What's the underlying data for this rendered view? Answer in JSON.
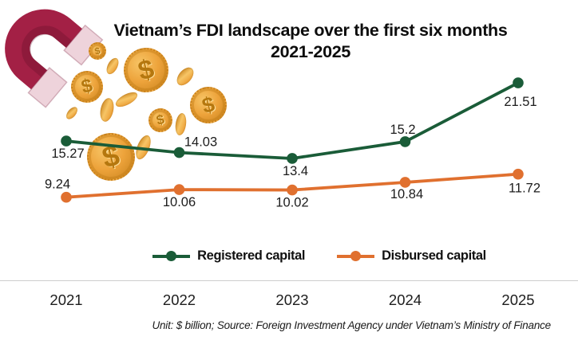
{
  "chart_data": {
    "type": "line",
    "title": "Vietnam’s FDI landscape over the first six months 2021-2025",
    "title_line1": "Vietnam’s FDI landscape over the first six months",
    "title_line2": "2021-2025",
    "categories": [
      "2021",
      "2022",
      "2023",
      "2024",
      "2025"
    ],
    "series": [
      {
        "name": "Registered capital",
        "color": "#1a5c38",
        "values": [
          15.27,
          14.03,
          13.4,
          15.2,
          21.51
        ],
        "label_offsets": [
          [
            2,
            21
          ],
          [
            27,
            -8
          ],
          [
            4,
            21
          ],
          [
            -3,
            -10
          ],
          [
            3,
            29
          ]
        ]
      },
      {
        "name": "Disbursed capital",
        "color": "#e0702f",
        "values": [
          9.24,
          10.06,
          10.02,
          10.84,
          11.72
        ],
        "label_offsets": [
          [
            -11,
            -11
          ],
          [
            0,
            21
          ],
          [
            0,
            21
          ],
          [
            2,
            20
          ],
          [
            8,
            23
          ]
        ]
      }
    ],
    "ylim": [
      8,
      23
    ],
    "grid": false,
    "legend_position": "bottom-center",
    "source_note": "Unit: $ billion; Source: Foreign Investment Agency under Vietnam’s Ministry of Finance"
  },
  "decor": {
    "magnet_icon": "horseshoe-magnet",
    "magnet_body_color": "#a32045",
    "magnet_tip_color": "#eed3db",
    "coin_icon": "dollar-coin",
    "coin_symbol": "$",
    "coin_gold": "#eda33b",
    "coin_gold_dark": "#c8821c",
    "coin_gold_light": "#f7c566"
  }
}
